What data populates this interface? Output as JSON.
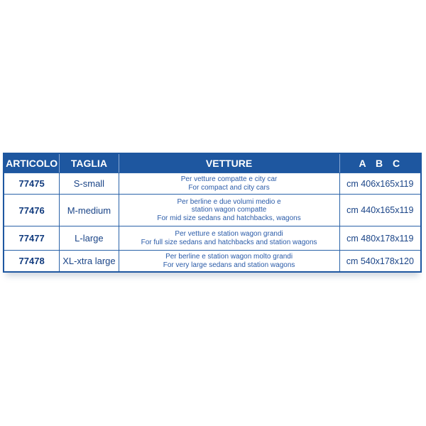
{
  "table": {
    "headers": {
      "articolo": "ARTICOLO",
      "taglia": "TAGLIA",
      "vetture": "VETTURE",
      "abc": "A B C"
    },
    "rows": [
      {
        "articolo": "77475",
        "taglia": "S-small",
        "vetture_lines": [
          "Per vetture compatte e city car",
          "For compact and city cars"
        ],
        "abc": "cm 406x165x119"
      },
      {
        "articolo": "77476",
        "taglia": "M-medium",
        "vetture_lines": [
          "Per berline e due volumi medio e",
          "station wagon compatte",
          "For mid size sedans and hatchbacks, wagons"
        ],
        "abc": "cm 440x165x119"
      },
      {
        "articolo": "77477",
        "taglia": "L-large",
        "vetture_lines": [
          "Per vetture e station wagon grandi",
          "For full size sedans and hatchbacks and station wagons"
        ],
        "abc": "cm 480x178x119"
      },
      {
        "articolo": "77478",
        "taglia": "XL-xtra large",
        "vetture_lines": [
          "Per berline e station wagon molto grandi",
          "For very large sedans and station wagons"
        ],
        "abc": "cm 540x178x120"
      }
    ],
    "colors": {
      "header_bg": "#1e57a0",
      "header_text": "#ffffff",
      "border": "#2a62a8",
      "body_text": "#1a4487",
      "strong_text": "#113b7e",
      "description_text": "#2a5ba8"
    }
  }
}
